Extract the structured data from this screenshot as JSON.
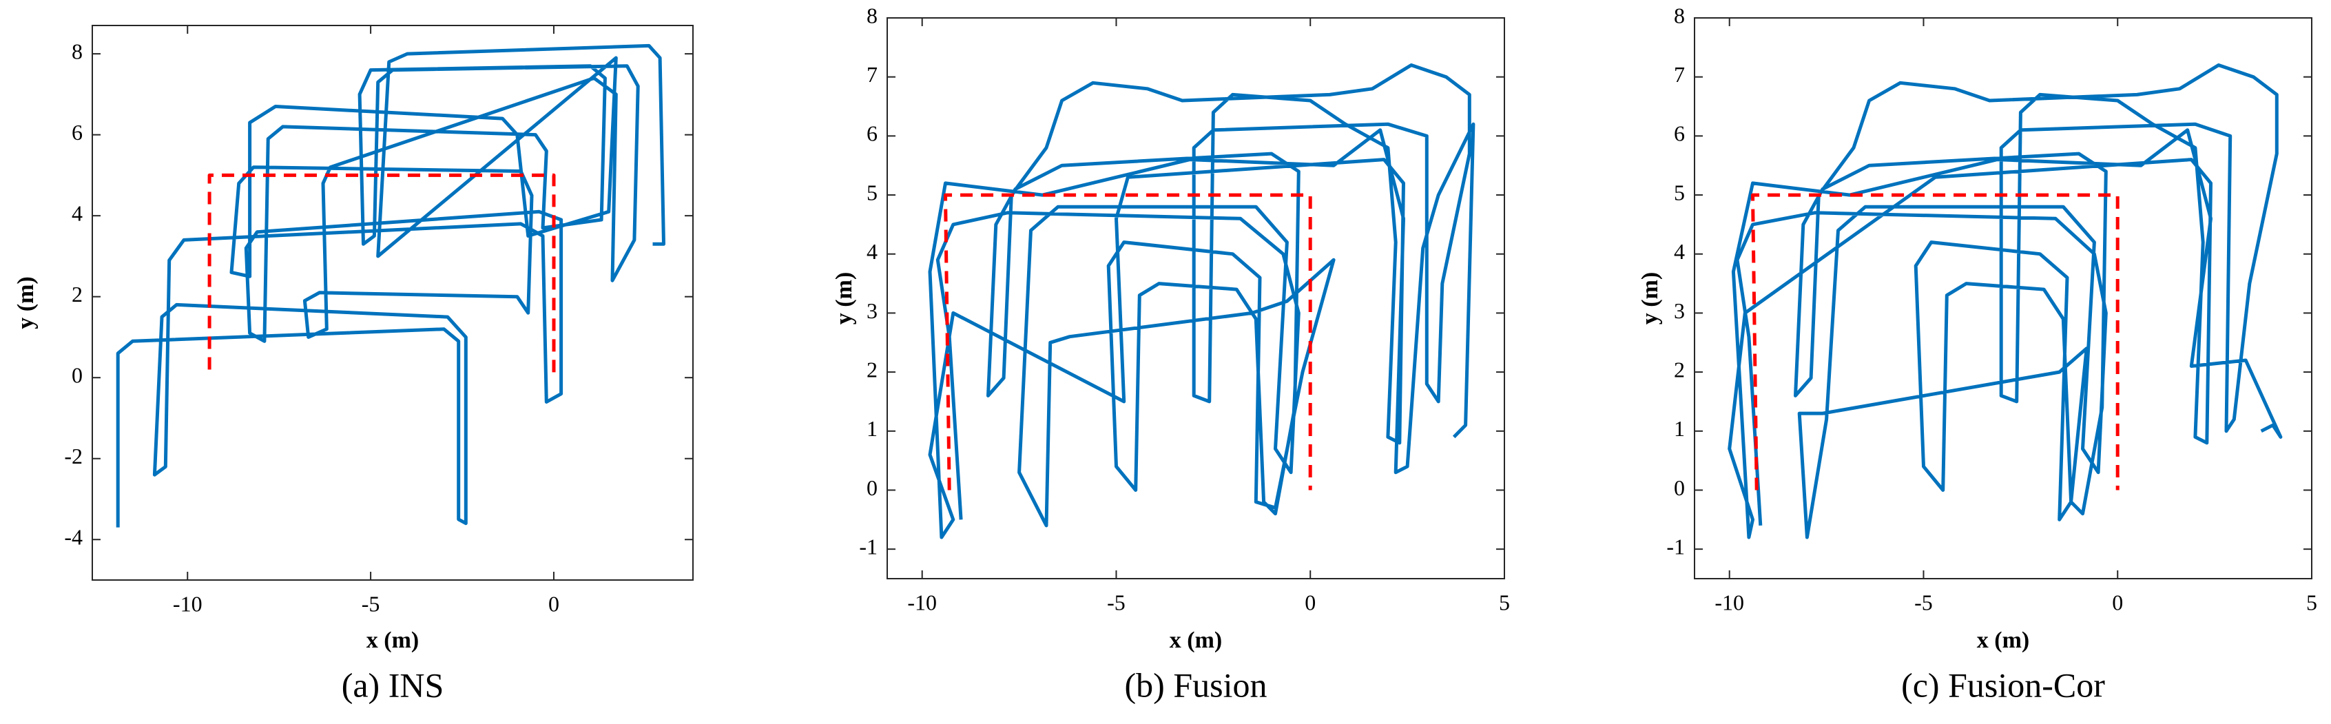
{
  "chart_data": [
    {
      "type": "line",
      "caption": "(a) INS",
      "xlabel": "x (m)",
      "ylabel": "y (m)",
      "xlim": [
        -12.6,
        3.8
      ],
      "ylim": [
        -5,
        8.7
      ],
      "xticks": [
        -10,
        -5,
        0
      ],
      "yticks": [
        -4,
        -2,
        0,
        2,
        4,
        6,
        8
      ],
      "series": [
        {
          "color": "#0072bd",
          "style": "solid",
          "x": [
            -11.9,
            -11.9,
            -11.5,
            -3.0,
            -2.6,
            -2.6,
            -2.4,
            -2.4,
            -2.9,
            -10.3,
            -10.7,
            -10.9,
            -10.6,
            -10.5,
            -10.1,
            -0.9,
            -0.3,
            -0.2,
            0.2,
            0.2,
            -0.4,
            -8.1,
            -8.4,
            -8.3,
            -7.9,
            -7.8,
            -7.4,
            -0.5,
            -0.2,
            -0.3,
            1.3,
            1.4,
            1.0,
            -5.0,
            -5.3,
            -5.2,
            -4.9,
            -4.8,
            -4.4,
            2.0,
            2.3,
            2.2,
            1.6,
            1.7,
            1.1,
            -6.1,
            -6.3,
            -6.2,
            -6.7,
            -6.8,
            -6.4,
            -1.0,
            -0.7,
            -0.6,
            -0.9,
            -8.2,
            -8.6,
            -8.8,
            -8.3,
            -8.3,
            -7.6,
            -1.4,
            -1.0,
            -0.7,
            1.5,
            1.7,
            -4.8,
            -4.5,
            -4.0,
            2.6,
            2.9,
            3.0,
            2.7
          ],
          "y": [
            -3.7,
            0.6,
            0.9,
            1.2,
            0.9,
            -3.5,
            -3.6,
            1.0,
            1.5,
            1.8,
            1.5,
            -2.4,
            -2.2,
            2.9,
            3.4,
            3.8,
            3.5,
            -0.6,
            -0.4,
            3.9,
            4.1,
            3.6,
            3.2,
            1.1,
            0.9,
            5.9,
            6.2,
            6.0,
            5.6,
            3.7,
            3.9,
            7.4,
            7.7,
            7.6,
            7.0,
            3.3,
            3.5,
            7.3,
            7.6,
            7.7,
            7.2,
            3.4,
            2.4,
            7.0,
            7.4,
            5.2,
            4.8,
            1.2,
            1.0,
            1.9,
            2.1,
            2.0,
            1.6,
            4.5,
            5.1,
            5.2,
            4.8,
            2.6,
            2.5,
            6.3,
            6.7,
            6.4,
            6.0,
            3.5,
            4.1,
            7.9,
            3.0,
            7.8,
            8.0,
            8.2,
            7.9,
            3.3,
            3.3
          ]
        },
        {
          "color": "#ff0000",
          "style": "dashed",
          "x": [
            -9.4,
            -9.4,
            0,
            0
          ],
          "y": [
            0.2,
            5,
            5,
            0
          ]
        }
      ]
    },
    {
      "type": "line",
      "caption": "(b) Fusion",
      "xlabel": "x (m)",
      "ylabel": "y (m)",
      "xlim": [
        -10.9,
        5
      ],
      "ylim": [
        -1.5,
        8
      ],
      "xticks": [
        -10,
        -5,
        0,
        5
      ],
      "yticks": [
        -1,
        0,
        1,
        2,
        3,
        4,
        5,
        6,
        7,
        8
      ],
      "series": [
        {
          "color": "#0072bd",
          "style": "solid",
          "x": [
            -9.0,
            -9.3,
            -9.6,
            -9.2,
            -7.8,
            -1.8,
            -0.7,
            -0.3,
            -0.5,
            -0.9,
            -0.6,
            -1.4,
            -6.5,
            -7.2,
            -7.5,
            -6.8,
            -6.7,
            -6.2,
            -1.5,
            -0.6,
            0.6,
            -0.2,
            -0.9,
            -1.4,
            -1.3,
            -2.0,
            -4.8,
            -5.2,
            -5.0,
            -4.5,
            -4.4,
            -3.9,
            -1.9,
            -1.4,
            -1.2,
            -0.9,
            -0.4,
            -0.3,
            -1.0,
            -6.4,
            -7.6,
            -8.1,
            -8.3,
            -7.9,
            -7.7,
            -6.8,
            -6.4,
            -5.6,
            -4.2,
            -3.3,
            0.5,
            1.6,
            2.6,
            3.5,
            4.1,
            4.1,
            3.4,
            3.3,
            3.0,
            3.0,
            2.0,
            -2.5,
            -3.0,
            -3.0,
            -2.6,
            -2.5,
            -2.0,
            0.0,
            0.9,
            2.0,
            2.2,
            2.0,
            2.3,
            2.4,
            1.9,
            -4.7,
            -5.0,
            -4.8,
            -9.2,
            -9.8,
            -9.2,
            -9.5,
            -9.8,
            -9.4,
            -6.9,
            -3.1,
            0.6,
            1.8,
            2.4,
            2.2,
            2.5,
            2.9,
            3.3,
            4.2,
            4.0,
            3.7
          ],
          "y": [
            -0.5,
            2.6,
            3.9,
            4.5,
            4.7,
            4.6,
            4.0,
            3.0,
            0.3,
            0.7,
            4.2,
            4.8,
            4.8,
            4.4,
            0.3,
            -0.6,
            2.5,
            2.6,
            3.0,
            3.2,
            3.9,
            2.0,
            -0.3,
            -0.2,
            3.6,
            4.0,
            4.2,
            3.8,
            0.4,
            0.0,
            3.3,
            3.5,
            3.4,
            2.9,
            -0.2,
            -0.4,
            1.4,
            5.4,
            5.7,
            5.5,
            5.1,
            4.5,
            1.6,
            1.9,
            5.0,
            5.8,
            6.6,
            6.9,
            6.8,
            6.6,
            6.7,
            6.8,
            7.2,
            7.0,
            6.7,
            5.7,
            3.5,
            1.5,
            1.8,
            6.0,
            6.2,
            6.1,
            5.8,
            1.6,
            1.5,
            6.4,
            6.7,
            6.6,
            6.2,
            5.8,
            4.2,
            0.9,
            0.8,
            5.2,
            5.6,
            5.3,
            4.6,
            1.5,
            3.0,
            0.6,
            -0.5,
            -0.8,
            3.7,
            5.2,
            5.0,
            5.6,
            5.5,
            6.1,
            4.6,
            0.3,
            0.4,
            4.1,
            5.0,
            6.2,
            1.1,
            0.9
          ]
        },
        {
          "color": "#ff0000",
          "style": "dashed",
          "x": [
            -9.3,
            -9.4,
            0,
            0
          ],
          "y": [
            0,
            5,
            5,
            0
          ]
        }
      ]
    },
    {
      "type": "line",
      "caption": "(c) Fusion-Cor",
      "xlabel": "x (m)",
      "ylabel": "y (m)",
      "xlim": [
        -10.9,
        5
      ],
      "ylim": [
        -1.5,
        8
      ],
      "xticks": [
        -10,
        -5,
        0,
        5
      ],
      "yticks": [
        -1,
        0,
        1,
        2,
        3,
        4,
        5,
        6,
        7,
        8
      ],
      "series": [
        {
          "color": "#0072bd",
          "style": "solid",
          "x": [
            -9.2,
            -9.5,
            -9.8,
            -9.4,
            -7.8,
            -1.6,
            -0.6,
            -0.3,
            -0.5,
            -0.9,
            -0.6,
            -1.4,
            -6.5,
            -7.2,
            -7.5,
            -8.0,
            -8.2,
            -7.6,
            -1.5,
            -0.8,
            -1.2,
            -1.5,
            -1.3,
            -2.0,
            -4.8,
            -5.2,
            -5.0,
            -4.5,
            -4.4,
            -3.9,
            -1.9,
            -1.4,
            -1.2,
            -0.9,
            -0.4,
            -0.3,
            -1.0,
            -6.4,
            -7.6,
            -8.1,
            -8.3,
            -7.9,
            -7.7,
            -6.8,
            -6.4,
            -5.6,
            -4.2,
            -3.3,
            0.5,
            1.6,
            2.6,
            3.5,
            4.1,
            4.1,
            3.4,
            3.0,
            2.8,
            2.9,
            2.0,
            -2.5,
            -3.0,
            -3.0,
            -2.6,
            -2.5,
            -2.0,
            0.0,
            0.9,
            2.0,
            2.2,
            2.0,
            2.3,
            2.4,
            1.9,
            -4.7,
            -9.6,
            -10.0,
            -9.4,
            -9.5,
            -9.9,
            -9.4,
            -6.9,
            -3.1,
            0.6,
            1.8,
            2.4,
            1.9,
            3.3,
            4.2,
            4.0,
            3.7
          ],
          "y": [
            -0.6,
            2.6,
            3.9,
            4.5,
            4.7,
            4.6,
            4.0,
            3.0,
            0.3,
            0.7,
            4.2,
            4.8,
            4.8,
            4.4,
            1.2,
            -0.8,
            1.3,
            1.3,
            2.0,
            2.4,
            -0.2,
            -0.5,
            3.6,
            4.0,
            4.2,
            3.8,
            0.4,
            0.0,
            3.3,
            3.5,
            3.4,
            2.9,
            -0.2,
            -0.4,
            1.4,
            5.4,
            5.7,
            5.5,
            5.1,
            4.5,
            1.6,
            1.9,
            5.0,
            5.8,
            6.6,
            6.9,
            6.8,
            6.6,
            6.7,
            6.8,
            7.2,
            7.0,
            6.7,
            5.7,
            3.5,
            1.2,
            1.0,
            6.0,
            6.2,
            6.1,
            5.8,
            1.6,
            1.5,
            6.4,
            6.7,
            6.6,
            6.2,
            5.8,
            4.2,
            0.9,
            0.8,
            5.2,
            5.6,
            5.3,
            3.0,
            0.7,
            -0.5,
            -0.8,
            3.7,
            5.2,
            5.0,
            5.6,
            5.5,
            6.1,
            4.6,
            2.1,
            2.2,
            0.9,
            1.1,
            1.0
          ]
        },
        {
          "color": "#ff0000",
          "style": "dashed",
          "x": [
            -9.3,
            -9.4,
            0,
            0
          ],
          "y": [
            0,
            5,
            5,
            0
          ]
        }
      ]
    }
  ]
}
